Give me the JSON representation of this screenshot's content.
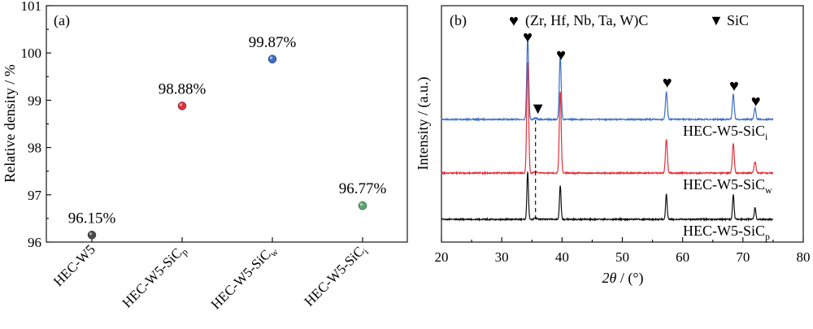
{
  "chart_data": [
    {
      "type": "scatter",
      "panel": "(a)",
      "ylabel": "Relative density / %",
      "ylim": [
        96,
        101
      ],
      "yticks": [
        96,
        97,
        98,
        99,
        100,
        101
      ],
      "categories": [
        "HEC-W5",
        "HEC-W5-SiC",
        "HEC-W5-SiC",
        "HEC-W5-SiC"
      ],
      "category_subscripts": [
        "",
        "p",
        "w",
        "i"
      ],
      "values": [
        96.15,
        98.88,
        99.87,
        96.77
      ],
      "data_labels": [
        "96.15%",
        "98.88%",
        "99.87%",
        "96.77%"
      ],
      "colors": [
        "#4a4a4a",
        "#e0323c",
        "#3d6ec7",
        "#5aa86e"
      ]
    },
    {
      "type": "line",
      "panel": "(b)",
      "xlabel_italic": "2θ",
      "xlabel_rest": " / (°)",
      "ylabel": "Intensity / (a.u.)",
      "xlim": [
        20,
        80
      ],
      "xticks": [
        20,
        30,
        40,
        50,
        60,
        70,
        80
      ],
      "legend": [
        {
          "symbol": "♥",
          "label": "(Zr, Hf, Nb, Ta, W)C"
        },
        {
          "symbol": "▼",
          "label": "SiC"
        }
      ],
      "peaks_hec": [
        34.3,
        39.7,
        57.3,
        68.4,
        72.0
      ],
      "peak_sic": 35.6,
      "series": [
        {
          "name": "HEC-W5-SiC",
          "sub": "i",
          "color": "#3d6ec7",
          "peak_heights": [
            0.72,
            0.55,
            0.24,
            0.22,
            0.1
          ]
        },
        {
          "name": "HEC-W5-SiC",
          "sub": "w",
          "color": "#e0323c",
          "peak_heights": [
            0.98,
            0.72,
            0.3,
            0.26,
            0.1
          ]
        },
        {
          "name": "HEC-W5-SiC",
          "sub": "p",
          "color": "#111111",
          "peak_heights": [
            0.42,
            0.3,
            0.22,
            0.22,
            0.1
          ]
        }
      ]
    }
  ]
}
